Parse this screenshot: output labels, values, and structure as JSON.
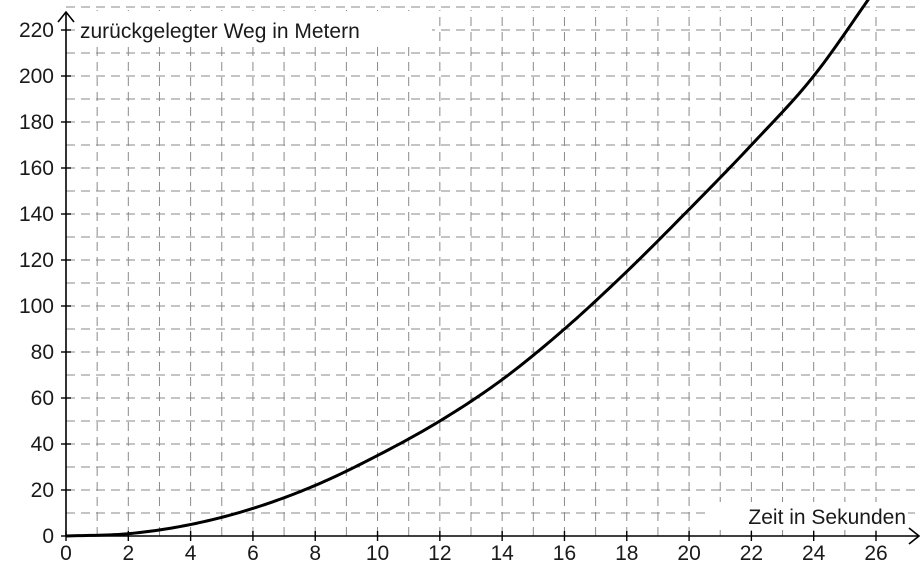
{
  "chart_data": {
    "type": "line",
    "xlabel": "Zeit in Sekunden",
    "ylabel": "zurückgelegter Weg in Metern",
    "xlim": [
      0,
      26
    ],
    "ylim": [
      0,
      230
    ],
    "x_ticks": [
      "0",
      "2",
      "4",
      "6",
      "8",
      "10",
      "12",
      "14",
      "16",
      "18",
      "20",
      "22",
      "24",
      "26"
    ],
    "y_ticks": [
      "0",
      "20",
      "40",
      "60",
      "80",
      "100",
      "120",
      "140",
      "160",
      "180",
      "200",
      "220"
    ],
    "grid": true,
    "series": [
      {
        "color": "#000000",
        "x": [
          0,
          2,
          4,
          6,
          8,
          10,
          12,
          14,
          16,
          18,
          20,
          22,
          24,
          26
        ],
        "y": [
          0,
          1,
          5,
          12,
          22,
          35,
          50,
          68,
          90,
          115,
          142,
          170,
          200,
          238
        ]
      }
    ]
  }
}
